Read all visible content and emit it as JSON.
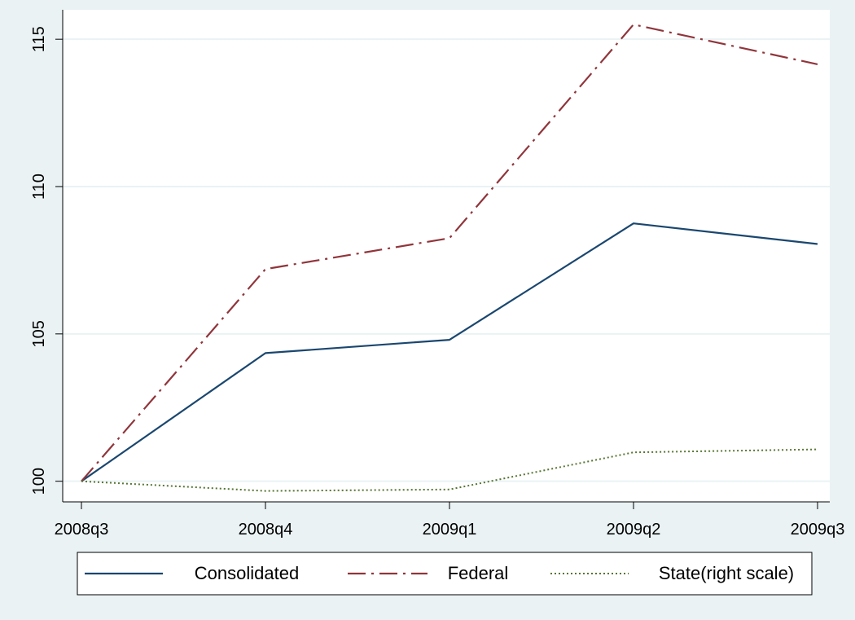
{
  "chart_data": {
    "type": "line",
    "title": "",
    "xlabel": "",
    "ylabel": "",
    "categories": [
      "2008q3",
      "2008q4",
      "2009q1",
      "2009q2",
      "2009q3"
    ],
    "ylim": [
      99.3,
      116
    ],
    "yticks": [
      100,
      105,
      110,
      115
    ],
    "grid": true,
    "legend_position": "bottom",
    "series": [
      {
        "name": "Consolidated",
        "values": [
          100,
          104.35,
          104.8,
          108.75,
          108.05
        ],
        "color": "#1a476f",
        "dash": "solid"
      },
      {
        "name": "Federal",
        "values": [
          100,
          107.2,
          108.25,
          115.5,
          114.15
        ],
        "color": "#90353b",
        "dash": "dashdot"
      },
      {
        "name": "State(right scale)",
        "values": [
          100,
          99.67,
          99.72,
          100.98,
          101.08
        ],
        "color": "#55752f",
        "dash": "dotted"
      }
    ]
  }
}
